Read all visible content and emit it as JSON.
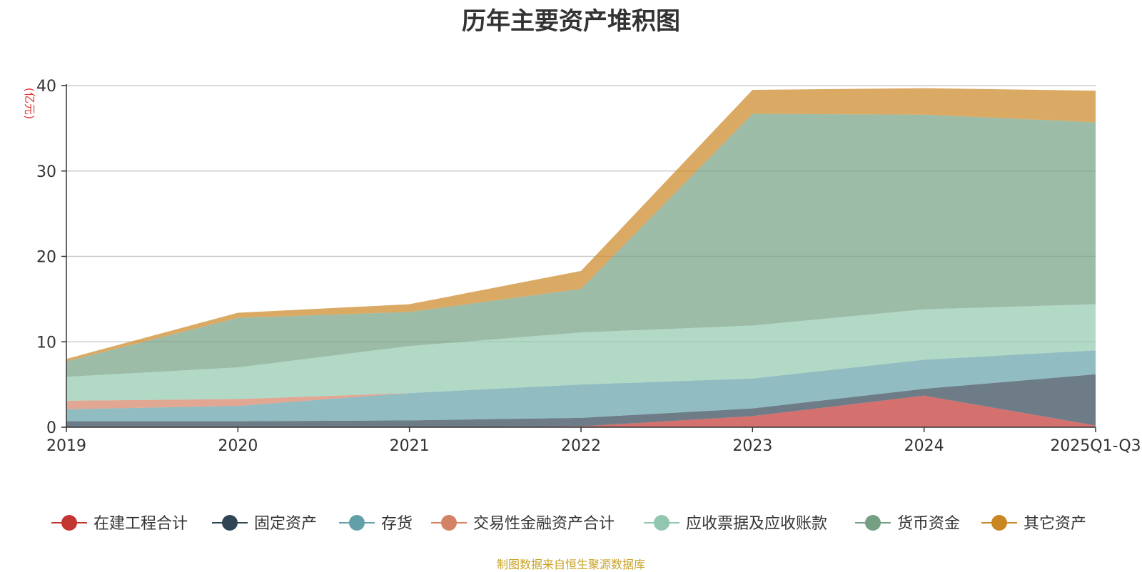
{
  "chart_data": {
    "type": "area",
    "stacked": true,
    "title": "历年主要资产堆积图",
    "ylabel": "(亿元)",
    "xlabel": "",
    "categories": [
      "2019",
      "2020",
      "2021",
      "2022",
      "2023",
      "2024",
      "2025Q1-Q3"
    ],
    "ylim": [
      0,
      40
    ],
    "yticks": [
      0,
      10,
      20,
      30,
      40
    ],
    "grid": true,
    "legend_position": "bottom",
    "series": [
      {
        "name": "在建工程合计",
        "color": "#c23531",
        "values": [
          0.0,
          0.0,
          0.0,
          0.1,
          1.3,
          3.7,
          0.2
        ]
      },
      {
        "name": "固定资产",
        "color": "#2f4554",
        "values": [
          0.7,
          0.7,
          0.8,
          1.0,
          0.9,
          0.8,
          6.0
        ]
      },
      {
        "name": "存货",
        "color": "#61a0a8",
        "values": [
          1.4,
          1.8,
          3.2,
          3.9,
          3.5,
          3.4,
          2.8
        ]
      },
      {
        "name": "交易性金融资产合计",
        "color": "#d48265",
        "values": [
          1.0,
          0.8,
          0.0,
          0.0,
          0.0,
          0.0,
          0.0
        ]
      },
      {
        "name": "应收票据及应收账款",
        "color": "#91c7ae",
        "values": [
          2.8,
          3.7,
          5.5,
          6.1,
          6.2,
          5.9,
          5.4
        ]
      },
      {
        "name": "货币资金",
        "color": "#749f83",
        "values": [
          1.8,
          5.8,
          4.0,
          5.1,
          24.8,
          22.8,
          21.3
        ]
      },
      {
        "name": "其它资产",
        "color": "#ca8622",
        "values": [
          0.3,
          0.6,
          0.9,
          2.1,
          2.8,
          3.1,
          3.7
        ]
      }
    ]
  },
  "source_note": "制图数据来自恒生聚源数据库"
}
